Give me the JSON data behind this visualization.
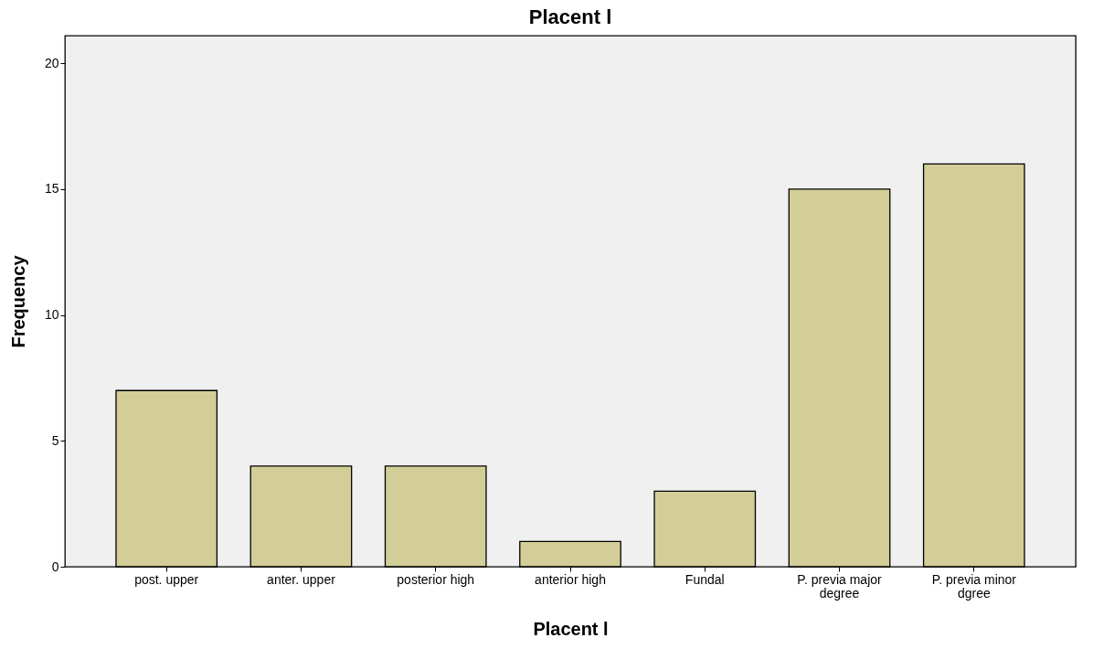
{
  "chart_data": {
    "type": "bar",
    "title": "Placent l",
    "xlabel": "Placent l",
    "ylabel": "Frequency",
    "categories": [
      "post. upper",
      "anter. upper",
      "posterior high",
      "anterior high",
      "Fundal",
      "P. previa major degree",
      "P. previa minor dgree"
    ],
    "values": [
      7,
      4,
      4,
      1,
      3,
      15,
      16
    ],
    "color": "#d3ce97",
    "ylim": [
      0,
      21.1
    ],
    "yticks": [
      0,
      5,
      10,
      15,
      20
    ],
    "grid": false
  }
}
